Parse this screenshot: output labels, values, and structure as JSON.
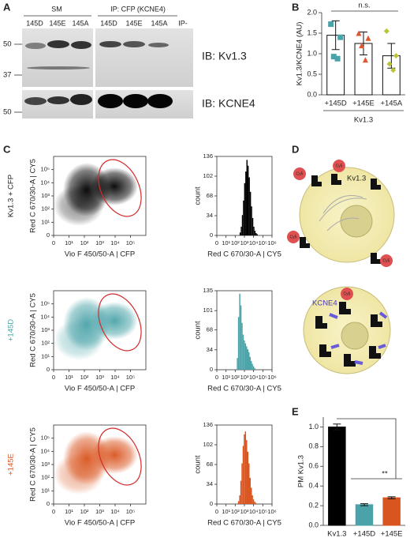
{
  "panel_labels": [
    "A",
    "B",
    "C",
    "D",
    "E"
  ],
  "blot": {
    "groups": [
      "SM",
      "IP: CFP (KCNE4)"
    ],
    "lanes": [
      "145D",
      "145E",
      "145A",
      "145D",
      "145E",
      "145A",
      "IP-"
    ],
    "markers": [
      "50",
      "37",
      "50"
    ],
    "ib": [
      "IB: Kv1.3",
      "IB: KCNE4"
    ]
  },
  "diagram": {
    "channel": "Kv1.3",
    "subunit": "KCNE4",
    "tag": "Cy5"
  },
  "chart_data": [
    {
      "type": "bar",
      "ylabel": "Kv1.3/KCNE4 (AU)",
      "xlabel": "Kv1.3",
      "annotation": "n.s.",
      "categories": [
        "+145D",
        "+145E",
        "+145A"
      ],
      "values": [
        1.45,
        1.25,
        0.95
      ],
      "errors": [
        0.35,
        0.28,
        0.3
      ],
      "colors": [
        "#4aa3a8",
        "#e0552c",
        "#b8c43a"
      ],
      "points": [
        [
          1.72,
          1.4,
          0.93,
          0.88
        ],
        [
          1.5,
          1.38,
          1.2,
          0.85
        ],
        [
          1.55,
          0.95,
          0.75,
          0.6
        ]
      ],
      "ylim": [
        0,
        2
      ],
      "yticks": [
        {
          "value": 0,
          "label": "0.0"
        },
        {
          "value": 0.5,
          "label": "0.5"
        },
        {
          "value": 1,
          "label": "1.0"
        },
        {
          "value": 1.5,
          "label": "1.5"
        },
        {
          "value": 2,
          "label": "2.0"
        }
      ]
    },
    {
      "type": "density",
      "row_label": "Kv1.3 + CFP",
      "color": "#000000",
      "xlabel": "Vio F 450/50-A | CFP",
      "ylabel": "Red C 670/30-A | CY5",
      "log_scale": true,
      "xlim": [
        0,
        1000000
      ],
      "ylim": [
        0,
        1000000
      ],
      "xticks": [
        0,
        {
          "value": 10,
          "label": "10¹"
        },
        {
          "value": 100,
          "label": "10²"
        },
        {
          "value": 1000,
          "label": "10³"
        },
        {
          "value": 10000,
          "label": "10⁴"
        },
        {
          "value": 100000,
          "label": "10⁵"
        }
      ],
      "yticks": [
        0,
        {
          "value": 10,
          "label": "10¹"
        },
        {
          "value": 100,
          "label": "10²"
        },
        {
          "value": 1000,
          "label": "10³"
        },
        {
          "value": 10000,
          "label": "10⁴"
        },
        {
          "value": 100000,
          "label": "10⁵"
        }
      ]
    },
    {
      "type": "density",
      "row_label": "+145D",
      "color": "#4aa3a8",
      "xlabel": "Vio F 450/50-A | CFP",
      "ylabel": "Red C 670/30-A | CY5",
      "log_scale": true,
      "xlim": [
        0,
        1000000
      ],
      "ylim": [
        0,
        1000000
      ],
      "xticks": [
        0,
        {
          "value": 10,
          "label": "10¹"
        },
        {
          "value": 100,
          "label": "10²"
        },
        {
          "value": 1000,
          "label": "10³"
        },
        {
          "value": 10000,
          "label": "10⁴"
        },
        {
          "value": 100000,
          "label": "10⁵"
        }
      ],
      "yticks": [
        0,
        {
          "value": 10,
          "label": "10¹"
        },
        {
          "value": 100,
          "label": "10²"
        },
        {
          "value": 1000,
          "label": "10³"
        },
        {
          "value": 10000,
          "label": "10⁴"
        },
        {
          "value": 100000,
          "label": "10⁵"
        }
      ]
    },
    {
      "type": "density",
      "row_label": "+145E",
      "color": "#d9541e",
      "xlabel": "Vio F 450/50-A | CFP",
      "ylabel": "Red C 670/30-A | CY5",
      "log_scale": true,
      "xlim": [
        0,
        1000000
      ],
      "ylim": [
        0,
        1000000
      ],
      "xticks": [
        0,
        {
          "value": 10,
          "label": "10¹"
        },
        {
          "value": 100,
          "label": "10²"
        },
        {
          "value": 1000,
          "label": "10³"
        },
        {
          "value": 10000,
          "label": "10⁴"
        },
        {
          "value": 100000,
          "label": "10⁵"
        }
      ],
      "yticks": [
        0,
        {
          "value": 10,
          "label": "10¹"
        },
        {
          "value": 100,
          "label": "10²"
        },
        {
          "value": 1000,
          "label": "10³"
        },
        {
          "value": 10000,
          "label": "10⁴"
        },
        {
          "value": 100000,
          "label": "10⁵"
        }
      ]
    },
    {
      "type": "histogram",
      "color": "#000000",
      "xlabel": "Red C 670/30-A | CY5",
      "ylabel": "count",
      "log_scale": true,
      "bins": [
        300,
        400,
        530,
        700,
        930,
        1240,
        1650,
        2200,
        2900,
        3900,
        5200,
        6900,
        9200,
        12200,
        16300,
        21600,
        28700
      ],
      "values": [
        5,
        15,
        35,
        60,
        90,
        110,
        130,
        120,
        100,
        75,
        50,
        30,
        15,
        8,
        4,
        2
      ],
      "xlim": [
        0,
        1000000
      ],
      "ylim": [
        0,
        136
      ],
      "yticks": [
        0,
        34,
        68,
        102,
        136
      ],
      "xticks": [
        0,
        {
          "value": 10,
          "label": "10¹"
        },
        {
          "value": 100,
          "label": "10²"
        },
        {
          "value": 1000,
          "label": "10³"
        },
        {
          "value": 10000,
          "label": "10⁴"
        },
        {
          "value": 100000,
          "label": "10⁵"
        },
        {
          "value": 1000000,
          "label": "10⁶"
        }
      ]
    },
    {
      "type": "histogram",
      "color": "#4aa3a8",
      "xlabel": "Red C 670/30-A | CY5",
      "ylabel": "count",
      "log_scale": true,
      "bins": [
        150,
        200,
        270,
        360,
        480,
        640,
        850,
        1130,
        1500,
        2000,
        2700,
        3600,
        4800,
        6400,
        8500,
        11300,
        15000
      ],
      "values": [
        20,
        90,
        130,
        110,
        80,
        60,
        50,
        45,
        40,
        35,
        30,
        22,
        15,
        10,
        6,
        3
      ],
      "xlim": [
        0,
        1000000
      ],
      "ylim": [
        0,
        135
      ],
      "yticks": [
        0,
        34,
        68,
        101,
        135
      ],
      "xticks": [
        0,
        {
          "value": 10,
          "label": "10¹"
        },
        {
          "value": 100,
          "label": "10²"
        },
        {
          "value": 1000,
          "label": "10³"
        },
        {
          "value": 10000,
          "label": "10⁴"
        },
        {
          "value": 100000,
          "label": "10⁵"
        },
        {
          "value": 1000000,
          "label": "10⁶"
        }
      ]
    },
    {
      "type": "histogram",
      "color": "#d9541e",
      "xlabel": "Red C 670/30-A | CY5",
      "ylabel": "count",
      "log_scale": true,
      "bins": [
        200,
        270,
        360,
        480,
        640,
        850,
        1130,
        1500,
        2000,
        2700,
        3600,
        4800,
        6400,
        8500,
        11300,
        15000,
        20000
      ],
      "values": [
        5,
        15,
        40,
        70,
        100,
        120,
        125,
        110,
        90,
        70,
        45,
        28,
        15,
        8,
        4,
        2
      ],
      "xlim": [
        0,
        1000000
      ],
      "ylim": [
        0,
        136
      ],
      "yticks": [
        0,
        34,
        68,
        102,
        136
      ],
      "xticks": [
        0,
        {
          "value": 10,
          "label": "10¹"
        },
        {
          "value": 100,
          "label": "10²"
        },
        {
          "value": 1000,
          "label": "10³"
        },
        {
          "value": 10000,
          "label": "10⁴"
        },
        {
          "value": 100000,
          "label": "10⁵"
        },
        {
          "value": 1000000,
          "label": "10⁶"
        }
      ]
    },
    {
      "type": "bar",
      "ylabel": "PM Kv1.3",
      "annotation": "**",
      "categories": [
        "Kv1.3",
        "+145D",
        "+145E"
      ],
      "values": [
        1.0,
        0.21,
        0.28
      ],
      "errors": [
        0.03,
        0.01,
        0.01
      ],
      "colors": [
        "#000000",
        "#4aa3a8",
        "#d9541e"
      ],
      "filled": true,
      "ylim": [
        0,
        1.1
      ],
      "yticks": [
        {
          "value": 0,
          "label": "0.0"
        },
        {
          "value": 0.2,
          "label": "0.2"
        },
        {
          "value": 0.4,
          "label": "0.4"
        },
        {
          "value": 0.6,
          "label": "0.6"
        },
        {
          "value": 0.8,
          "label": "0.8"
        },
        {
          "value": 1,
          "label": "1.0"
        }
      ]
    }
  ]
}
